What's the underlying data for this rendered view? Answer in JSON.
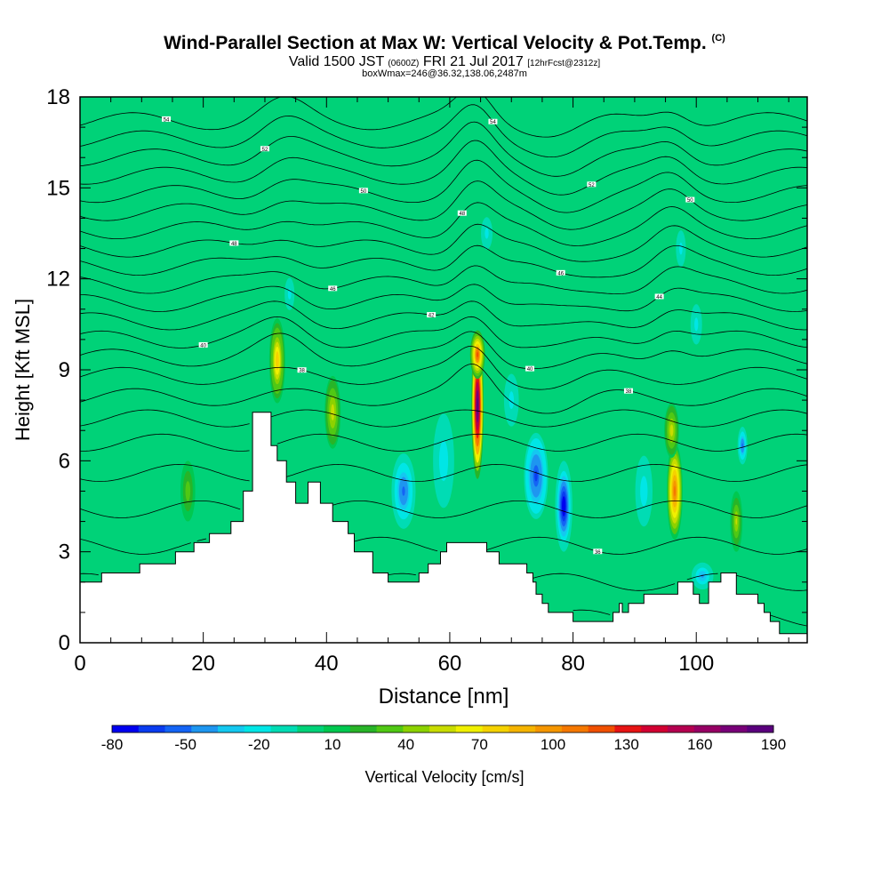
{
  "header": {
    "title": "Wind-Parallel Section at Max W: Vertical Velocity & Pot.Temp.",
    "copyright": "(C)",
    "valid_prefix": "Valid 1500 JST",
    "valid_utc": "(0600Z)",
    "valid_date": "FRI 21 Jul 2017",
    "forecast": "[12hrFcst@2312z]",
    "box_info": "boxWmax=246@36.32,138.06,2487m"
  },
  "colorbar": {
    "label": "Vertical Velocity [cm/s]",
    "tick_labels": [
      "-80",
      "-50",
      "-20",
      "10",
      "40",
      "70",
      "100",
      "130",
      "160",
      "190"
    ],
    "colors": [
      "#0000f0",
      "#0a3cf0",
      "#1464f5",
      "#1e96f0",
      "#14c8f0",
      "#00e6e6",
      "#00dcb4",
      "#00d278",
      "#00c850",
      "#28b428",
      "#50c814",
      "#8cd200",
      "#c8dc00",
      "#f0f000",
      "#f5d200",
      "#f5b400",
      "#f59600",
      "#f57800",
      "#f05000",
      "#e61414",
      "#d20032",
      "#b40050",
      "#960064",
      "#780078",
      "#5a007d"
    ]
  },
  "chart_data": {
    "type": "heatmap",
    "title": "Wind-Parallel Section at Max W: Vertical Velocity & Pot.Temp.",
    "xlabel": "Distance [nm]",
    "ylabel": "Height [Kft MSL]",
    "xlim": [
      0,
      118
    ],
    "ylim": [
      0,
      18
    ],
    "xticks": [
      0,
      20,
      40,
      60,
      80,
      100
    ],
    "yticks": [
      0,
      3,
      6,
      9,
      12,
      15,
      18
    ],
    "background_value": 5,
    "grid": false,
    "terrain": {
      "x": [
        0,
        3.5,
        3.5,
        9.7,
        9.7,
        15.5,
        15.5,
        18.5,
        18.5,
        21,
        21,
        24.5,
        24.5,
        26.5,
        26.5,
        28,
        28,
        31,
        31,
        32,
        32,
        33.5,
        33.5,
        35,
        35,
        37,
        37,
        39,
        39,
        41,
        41,
        43.5,
        43.5,
        44.5,
        44.5,
        47.5,
        47.5,
        50,
        50,
        55,
        55,
        56.5,
        56.5,
        58.5,
        58.5,
        59.5,
        59.5,
        66,
        66,
        68,
        68,
        72.5,
        72.5,
        73.5,
        73.5,
        74,
        74,
        75,
        75,
        76,
        76,
        80,
        80,
        86.5,
        86.5,
        87.5,
        87.5,
        88,
        88,
        89,
        89,
        91.5,
        91.5,
        97,
        97,
        99.5,
        99.5,
        100.5,
        100.5,
        102,
        102,
        104,
        104,
        106.5,
        106.5,
        110,
        110,
        111,
        111,
        112,
        112,
        113.5,
        113.5,
        118
      ],
      "y_kft": [
        2.0,
        2.0,
        2.3,
        2.3,
        2.6,
        2.6,
        3.0,
        3.0,
        3.3,
        3.3,
        3.6,
        3.6,
        4.0,
        4.0,
        5.0,
        5.0,
        7.6,
        7.6,
        6.5,
        6.5,
        6.0,
        6.0,
        5.3,
        5.3,
        4.6,
        4.6,
        5.3,
        5.3,
        4.6,
        4.6,
        4.0,
        4.0,
        3.6,
        3.6,
        3.0,
        3.0,
        2.3,
        2.3,
        2.0,
        2.0,
        2.3,
        2.3,
        2.6,
        2.6,
        3.0,
        3.0,
        3.3,
        3.3,
        3.0,
        3.0,
        2.6,
        2.6,
        2.3,
        2.3,
        2.0,
        2.0,
        1.6,
        1.6,
        1.3,
        1.3,
        1.0,
        1.0,
        0.7,
        0.7,
        1.0,
        1.0,
        1.3,
        1.3,
        1.0,
        1.0,
        1.3,
        1.3,
        1.6,
        1.6,
        2.0,
        2.0,
        1.6,
        1.6,
        1.3,
        1.3,
        2.0,
        2.0,
        2.3,
        2.3,
        1.6,
        1.6,
        1.3,
        1.3,
        1.0,
        1.0,
        0.7,
        0.7,
        0.3,
        0.3
      ]
    },
    "w_features": [
      {
        "x": 32,
        "y": 9.3,
        "rx": 1.3,
        "ry": 1.4,
        "w": 80
      },
      {
        "x": 41,
        "y": 7.6,
        "rx": 1.3,
        "ry": 1.2,
        "w": 60
      },
      {
        "x": 64.5,
        "y": 7.8,
        "rx": 1.0,
        "ry": 2.4,
        "w": 190
      },
      {
        "x": 64.5,
        "y": 9.5,
        "rx": 1.2,
        "ry": 0.8,
        "w": 120
      },
      {
        "x": 96.5,
        "y": 5.0,
        "rx": 1.3,
        "ry": 1.6,
        "w": 110
      },
      {
        "x": 96,
        "y": 7.0,
        "rx": 1.2,
        "ry": 0.9,
        "w": 60
      },
      {
        "x": 106.5,
        "y": 4.0,
        "rx": 1.0,
        "ry": 1.0,
        "w": 50
      },
      {
        "x": 17.5,
        "y": 5.0,
        "rx": 1.2,
        "ry": 1.0,
        "w": 35
      },
      {
        "x": 52.5,
        "y": 5.0,
        "rx": 2.2,
        "ry": 1.4,
        "w": -50
      },
      {
        "x": 74,
        "y": 5.5,
        "rx": 2.2,
        "ry": 1.6,
        "w": -60
      },
      {
        "x": 78.5,
        "y": 4.5,
        "rx": 1.4,
        "ry": 1.5,
        "w": -80
      },
      {
        "x": 107.5,
        "y": 6.5,
        "rx": 0.9,
        "ry": 0.7,
        "w": -50
      },
      {
        "x": 101,
        "y": 2.2,
        "rx": 2.0,
        "ry": 0.5,
        "w": -40
      },
      {
        "x": 59,
        "y": 6.0,
        "rx": 2.2,
        "ry": 2.0,
        "w": -25
      },
      {
        "x": 91.5,
        "y": 5.0,
        "rx": 1.8,
        "ry": 1.5,
        "w": -25
      },
      {
        "x": 70,
        "y": 8.0,
        "rx": 1.8,
        "ry": 1.3,
        "w": -20
      },
      {
        "x": 34,
        "y": 11.5,
        "rx": 1.2,
        "ry": 0.8,
        "w": -20
      },
      {
        "x": 66,
        "y": 13.5,
        "rx": 1.4,
        "ry": 0.8,
        "w": -20
      },
      {
        "x": 97.5,
        "y": 13.0,
        "rx": 1.2,
        "ry": 0.9,
        "w": -20
      },
      {
        "x": 100,
        "y": 10.5,
        "rx": 1.4,
        "ry": 1.0,
        "w": -20
      }
    ],
    "theta_contours": [
      {
        "base_kft": 0.8,
        "label": ""
      },
      {
        "base_kft": 2.0,
        "label": ""
      },
      {
        "base_kft": 3.2,
        "label": "36"
      },
      {
        "base_kft": 4.4,
        "label": ""
      },
      {
        "base_kft": 5.6,
        "label": ""
      },
      {
        "base_kft": 6.6,
        "label": ""
      },
      {
        "base_kft": 7.4,
        "label": ""
      },
      {
        "base_kft": 8.1,
        "label": "38"
      },
      {
        "base_kft": 8.8,
        "label": "38"
      },
      {
        "base_kft": 9.4,
        "label": "40"
      },
      {
        "base_kft": 10.0,
        "label": "40"
      },
      {
        "base_kft": 10.6,
        "label": "42"
      },
      {
        "base_kft": 11.2,
        "label": "44"
      },
      {
        "base_kft": 11.8,
        "label": "46"
      },
      {
        "base_kft": 12.4,
        "label": "46"
      },
      {
        "base_kft": 13.0,
        "label": "48"
      },
      {
        "base_kft": 13.6,
        "label": "48"
      },
      {
        "base_kft": 14.2,
        "label": "50"
      },
      {
        "base_kft": 14.8,
        "label": "50"
      },
      {
        "base_kft": 15.4,
        "label": "52"
      },
      {
        "base_kft": 16.0,
        "label": "52"
      },
      {
        "base_kft": 16.6,
        "label": "54"
      },
      {
        "base_kft": 17.2,
        "label": "54"
      }
    ]
  }
}
